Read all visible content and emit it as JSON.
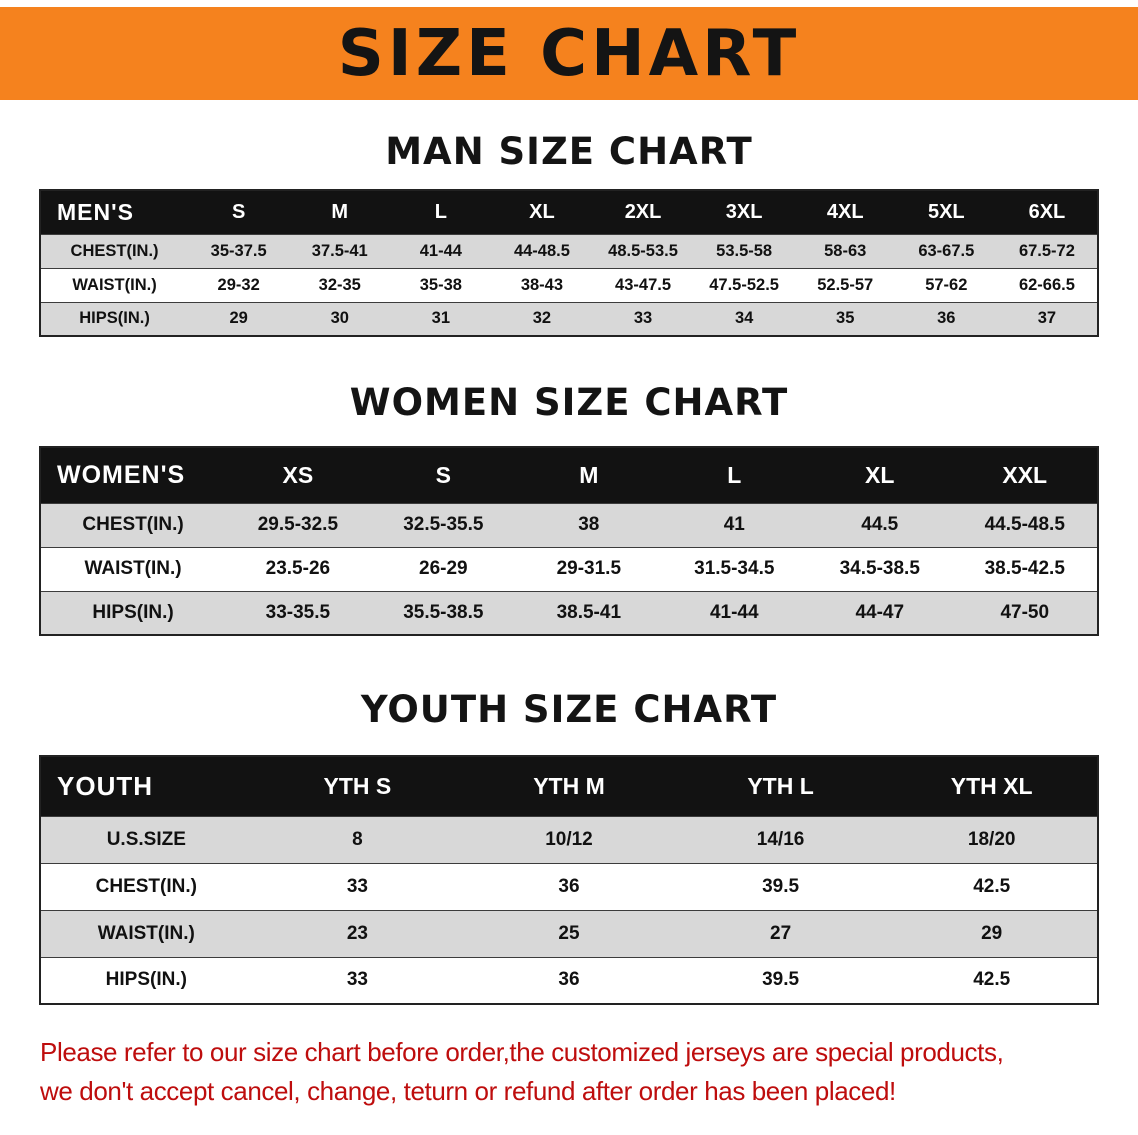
{
  "banner": {
    "title": "SIZE CHART"
  },
  "sections": [
    {
      "heading": "MAN SIZE CHART",
      "table": {
        "header": [
          "MEN'S",
          "S",
          "M",
          "L",
          "XL",
          "2XL",
          "3XL",
          "4XL",
          "5XL",
          "6XL"
        ],
        "rows": [
          [
            "CHEST(IN.)",
            "35-37.5",
            "37.5-41",
            "41-44",
            "44-48.5",
            "48.5-53.5",
            "53.5-58",
            "58-63",
            "63-67.5",
            "67.5-72"
          ],
          [
            "WAIST(IN.)",
            "29-32",
            "32-35",
            "35-38",
            "38-43",
            "43-47.5",
            "47.5-52.5",
            "52.5-57",
            "57-62",
            "62-66.5"
          ],
          [
            "HIPS(IN.)",
            "29",
            "30",
            "31",
            "32",
            "33",
            "34",
            "35",
            "36",
            "37"
          ]
        ]
      }
    },
    {
      "heading": "WOMEN SIZE CHART",
      "table": {
        "header": [
          "WOMEN'S",
          "XS",
          "S",
          "M",
          "L",
          "XL",
          "XXL"
        ],
        "rows": [
          [
            "CHEST(IN.)",
            "29.5-32.5",
            "32.5-35.5",
            "38",
            "41",
            "44.5",
            "44.5-48.5"
          ],
          [
            "WAIST(IN.)",
            "23.5-26",
            "26-29",
            "29-31.5",
            "31.5-34.5",
            "34.5-38.5",
            "38.5-42.5"
          ],
          [
            "HIPS(IN.)",
            "33-35.5",
            "35.5-38.5",
            "38.5-41",
            "41-44",
            "44-47",
            "47-50"
          ]
        ]
      }
    },
    {
      "heading": "YOUTH SIZE CHART",
      "table": {
        "header": [
          "YOUTH",
          "YTH S",
          "YTH M",
          "YTH L",
          "YTH XL"
        ],
        "rows": [
          [
            "U.S.SIZE",
            "8",
            "10/12",
            "14/16",
            "18/20"
          ],
          [
            "CHEST(IN.)",
            "33",
            "36",
            "39.5",
            "42.5"
          ],
          [
            "WAIST(IN.)",
            "23",
            "25",
            "27",
            "29"
          ],
          [
            "HIPS(IN.)",
            "33",
            "36",
            "39.5",
            "42.5"
          ]
        ]
      }
    }
  ],
  "footer": {
    "line1": "Please refer to our size chart before order,the customized jerseys are special products,",
    "line2": "we don't accept cancel, change, teturn or refund after order has been placed!"
  },
  "colors": {
    "banner_bg": "#F5821E",
    "header_bg": "#121212",
    "row_alt_bg": "#D8D8D8",
    "footer_text": "#BE0D0D"
  }
}
